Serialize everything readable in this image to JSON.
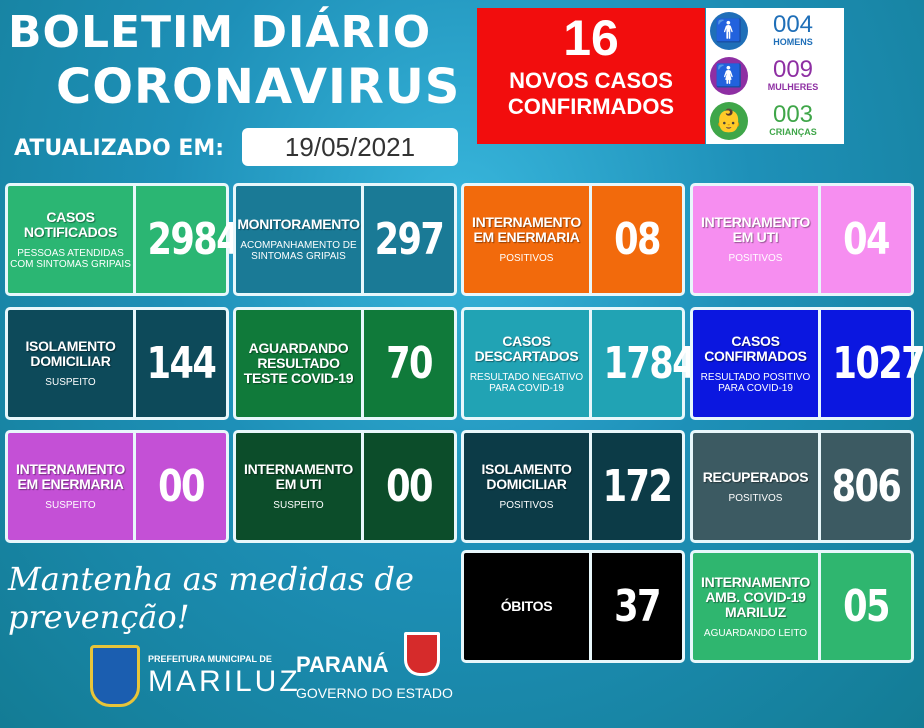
{
  "header": {
    "line1": "BOLETIM DIÁRIO",
    "line2": "CORONAVIRUS",
    "updated_label": "ATUALIZADO EM:",
    "updated_date": "19/05/2021"
  },
  "new_cases": {
    "count": "16",
    "label1": "NOVOS CASOS",
    "label2": "CONFIRMADOS",
    "color": "#f20d0d"
  },
  "demographics": [
    {
      "value": "004",
      "label": "HOMENS",
      "icon": "man-icon",
      "color": "#1f6fb8"
    },
    {
      "value": "009",
      "label": "MULHERES",
      "icon": "woman-icon",
      "color": "#8e2fa3"
    },
    {
      "value": "003",
      "label": "CRIANÇAS",
      "icon": "baby-icon",
      "color": "#3fa649"
    }
  ],
  "cards": [
    {
      "title": "CASOS NOTIFICADOS",
      "sub": "PESSOAS ATENDIDAS COM SINTOMAS GRIPAIS",
      "value": "2984",
      "color": "#2bb673"
    },
    {
      "title": "MONITORAMENTO",
      "sub": "ACOMPANHAMENTO DE SINTOMAS GRIPAIS",
      "value": "297",
      "color": "#1a7a96"
    },
    {
      "title": "INTERNAMENTO EM ENERMARIA",
      "sub": "POSITIVOS",
      "value": "08",
      "color": "#f26a0c"
    },
    {
      "title": "INTERNAMENTO EM UTI",
      "sub": "POSITIVOS",
      "value": "04",
      "color": "#f68ef0"
    },
    {
      "title": "ISOLAMENTO DOMICILIAR",
      "sub": "SUSPEITO",
      "value": "144",
      "color": "#0d4a5a"
    },
    {
      "title": "AGUARDANDO RESULTADO TESTE COVID-19",
      "sub": "",
      "value": "70",
      "color": "#107a3a"
    },
    {
      "title": "CASOS DESCARTADOS",
      "sub": "RESULTADO NEGATIVO PARA COVID-19",
      "value": "1784",
      "color": "#21a3b4"
    },
    {
      "title": "CASOS CONFIRMADOS",
      "sub": "RESULTADO POSITIVO PARA COVID-19",
      "value": "1027",
      "color": "#0b17e0"
    },
    {
      "title": "INTERNAMENTO EM ENERMARIA",
      "sub": "SUSPEITO",
      "value": "00",
      "color": "#c450d6"
    },
    {
      "title": "INTERNAMENTO EM UTI",
      "sub": "SUSPEITO",
      "value": "00",
      "color": "#0c4d2a"
    },
    {
      "title": "ISOLAMENTO DOMICILIAR",
      "sub": "POSITIVOS",
      "value": "172",
      "color": "#0c3b47"
    },
    {
      "title": "RECUPERADOS",
      "sub": "POSITIVOS",
      "value": "806",
      "color": "#3c5a62"
    },
    {
      "title": "ÓBITOS",
      "sub": "",
      "value": "37",
      "color": "#000000"
    },
    {
      "title": "INTERNAMENTO AMB. COVID-19 MARILUZ",
      "sub": "AGUARDANDO LEITO",
      "value": "05",
      "color": "#2fb66f"
    }
  ],
  "slogan": "Mantenha as medidas de prevenção!",
  "logos": {
    "prefeitura_small": "PREFEITURA MUNICIPAL DE",
    "prefeitura_name": "MARILUZ",
    "state": "PARANÁ",
    "state_sub": "GOVERNO DO ESTADO"
  }
}
